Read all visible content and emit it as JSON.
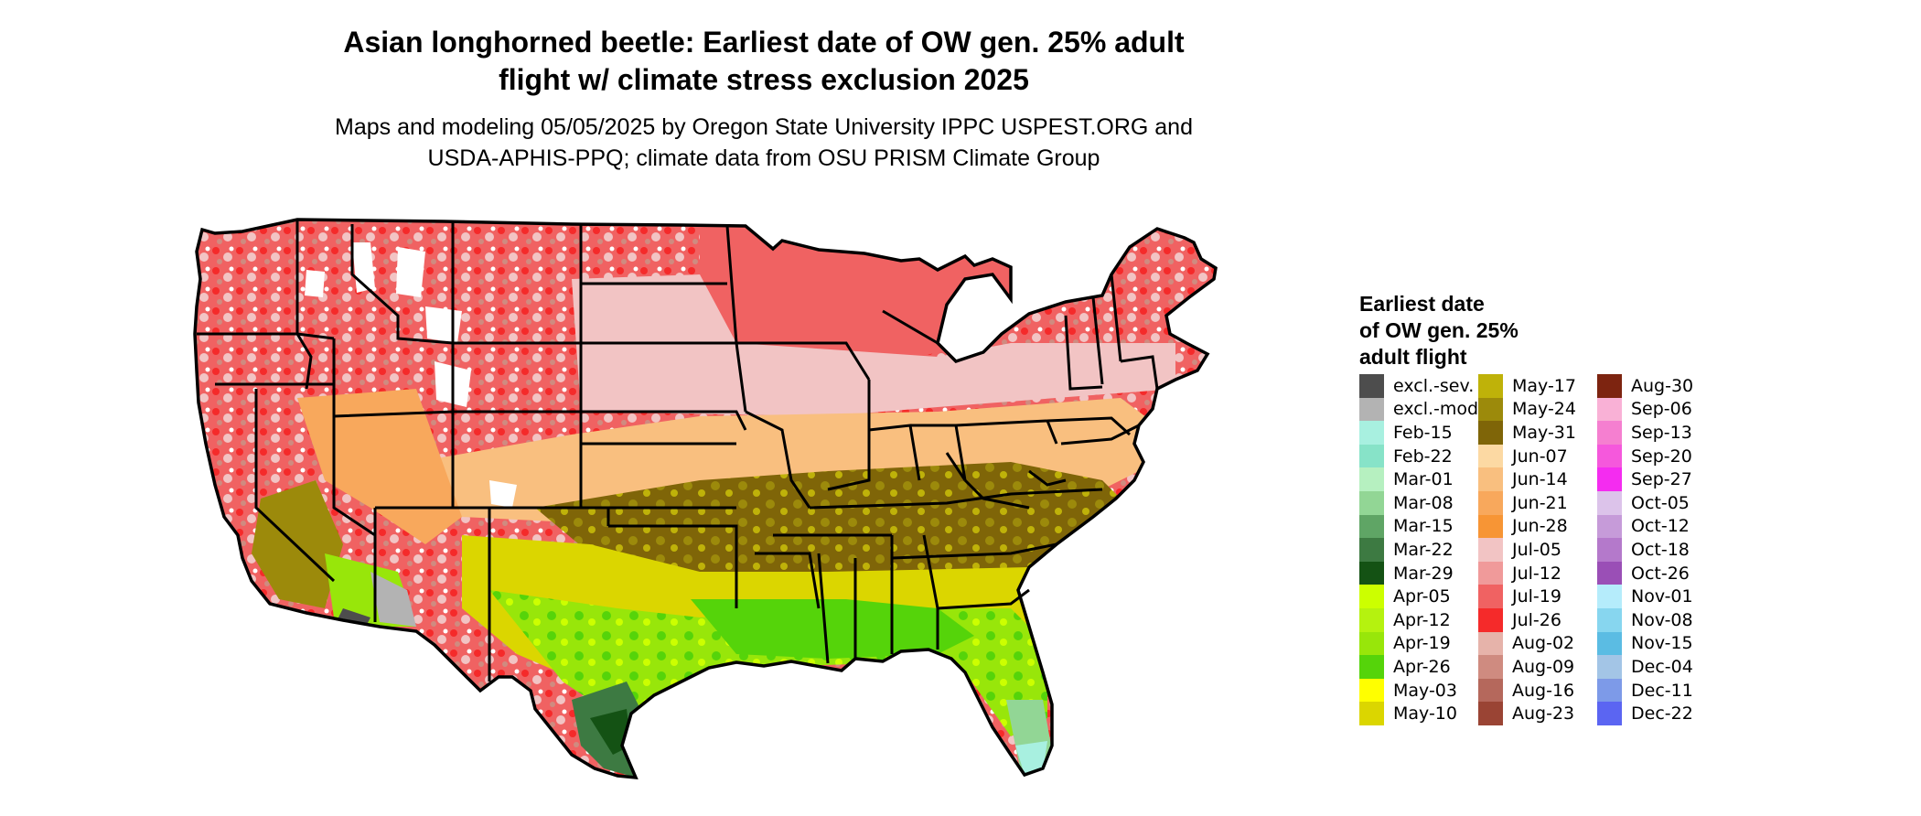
{
  "title": {
    "line1": "Asian longhorned beetle: Earliest date of OW gen. 25% adult",
    "line2": "flight w/ climate stress exclusion 2025"
  },
  "subtitle": {
    "line1": "Maps and modeling 05/05/2025 by Oregon State University IPPC USPEST.ORG and",
    "line2": "USDA-APHIS-PPQ; climate data from OSU PRISM Climate Group"
  },
  "map": {
    "subject": "contiguous-united-states",
    "regions": [
      {
        "name": "northwest-red-zone",
        "color": "#f24b4b",
        "category": "Jul-19"
      },
      {
        "name": "northern-plains-pink",
        "color": "#f2c4c4",
        "category": "Jul-05"
      },
      {
        "name": "central-orange-band",
        "color": "#f9b067",
        "category": "Jun-14"
      },
      {
        "name": "midsouth-olive-band",
        "color": "#7f6508",
        "category": "May-31"
      },
      {
        "name": "gulf-yellow-green",
        "color": "#a8e60e",
        "category": "Apr-19"
      },
      {
        "name": "deep-south-green",
        "color": "#55d40a",
        "category": "Apr-26"
      },
      {
        "name": "south-texas-dark-green",
        "color": "#2e6b2e",
        "category": "Mar-22"
      },
      {
        "name": "south-florida-light-green",
        "color": "#92d695",
        "category": "Mar-08"
      }
    ]
  },
  "legend": {
    "title_lines": [
      "Earliest date",
      "of OW gen. 25%",
      "adult flight"
    ],
    "columns": [
      [
        {
          "label": "excl.-sev.",
          "color": "#4d4d4d"
        },
        {
          "label": "excl.-mod.",
          "color": "#b3b3b3"
        },
        {
          "label": "Feb-15",
          "color": "#a8f0e0"
        },
        {
          "label": "Feb-22",
          "color": "#87e3c8"
        },
        {
          "label": "Mar-01",
          "color": "#b6f0c0"
        },
        {
          "label": "Mar-08",
          "color": "#92d695"
        },
        {
          "label": "Mar-15",
          "color": "#5fa565"
        },
        {
          "label": "Mar-22",
          "color": "#3d7a42"
        },
        {
          "label": "Mar-29",
          "color": "#145214"
        },
        {
          "label": "Apr-05",
          "color": "#ccff00"
        },
        {
          "label": "Apr-12",
          "color": "#b5f20f"
        },
        {
          "label": "Apr-19",
          "color": "#98e60a"
        },
        {
          "label": "Apr-26",
          "color": "#55d40a"
        },
        {
          "label": "May-03",
          "color": "#ffff00"
        },
        {
          "label": "May-10",
          "color": "#dbd600"
        }
      ],
      [
        {
          "label": "May-17",
          "color": "#bfb209"
        },
        {
          "label": "May-24",
          "color": "#9c8a0b"
        },
        {
          "label": "May-31",
          "color": "#7f6508"
        },
        {
          "label": "Jun-07",
          "color": "#fcd9a3"
        },
        {
          "label": "Jun-14",
          "color": "#f9bf7f"
        },
        {
          "label": "Jun-21",
          "color": "#f8a85c"
        },
        {
          "label": "Jun-28",
          "color": "#f79535"
        },
        {
          "label": "Jul-05",
          "color": "#f2c4c4"
        },
        {
          "label": "Jul-12",
          "color": "#f09a9a"
        },
        {
          "label": "Jul-19",
          "color": "#f06262"
        },
        {
          "label": "Jul-26",
          "color": "#f52a2a"
        },
        {
          "label": "Aug-02",
          "color": "#e6b3aa"
        },
        {
          "label": "Aug-09",
          "color": "#cf8b80"
        },
        {
          "label": "Aug-16",
          "color": "#b5685c"
        },
        {
          "label": "Aug-23",
          "color": "#9a4434"
        }
      ],
      [
        {
          "label": "Aug-30",
          "color": "#7d2410"
        },
        {
          "label": "Sep-06",
          "color": "#f9b1d6"
        },
        {
          "label": "Sep-13",
          "color": "#f57fd0"
        },
        {
          "label": "Sep-20",
          "color": "#f558dc"
        },
        {
          "label": "Sep-27",
          "color": "#f42cf0"
        },
        {
          "label": "Oct-05",
          "color": "#dcc3ea"
        },
        {
          "label": "Oct-12",
          "color": "#c69bd9"
        },
        {
          "label": "Oct-18",
          "color": "#b479cb"
        },
        {
          "label": "Oct-26",
          "color": "#9a4fb6"
        },
        {
          "label": "Nov-01",
          "color": "#b5ecfb"
        },
        {
          "label": "Nov-08",
          "color": "#87d6ef"
        },
        {
          "label": "Nov-15",
          "color": "#5bbce3"
        },
        {
          "label": "Dec-04",
          "color": "#a3c5e6"
        },
        {
          "label": "Dec-11",
          "color": "#7d9ae8"
        },
        {
          "label": "Dec-22",
          "color": "#5b65f2"
        }
      ]
    ]
  }
}
